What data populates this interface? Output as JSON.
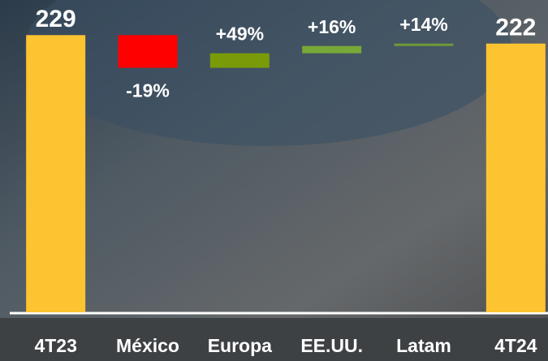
{
  "chart_data": {
    "type": "waterfall",
    "categories": [
      "4T23",
      "México",
      "Europa",
      "EE.UU.",
      "Latam",
      "4T24"
    ],
    "values": [
      229,
      -27,
      12,
      6,
      2,
      222
    ],
    "totals": [
      true,
      false,
      false,
      false,
      false,
      true
    ],
    "annotations": [
      "-19%",
      "+49%",
      "+16%",
      "+14%"
    ],
    "colors": [
      "#fdc431",
      "#ff0000",
      "#7a9b08",
      "#78a838",
      "#6f9a3a",
      "#fdc431"
    ],
    "ylim": [
      0,
      258
    ]
  }
}
